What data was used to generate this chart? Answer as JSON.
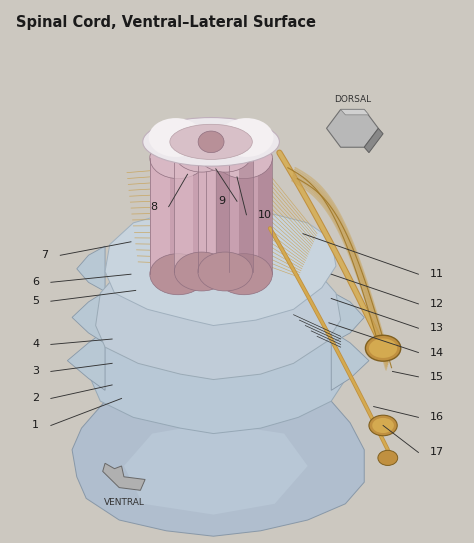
{
  "title": "Spinal Cord, Ventral–Lateral Surface",
  "bg_color": "#ccc8c0",
  "title_color": "#1a1a1a",
  "title_fontsize": 10.5,
  "label_fontsize": 8,
  "line_color": "#333333",
  "vertebra_light": "#b8c4d0",
  "vertebra_mid": "#a0b0c0",
  "vertebra_dark": "#8090a0",
  "cord_pink": "#c8a0a8",
  "cord_pink_light": "#ddbbc2",
  "cord_top_white": "#f0eaec",
  "cord_gray": "#d4c0c8",
  "nerve_gold": "#c8a050",
  "nerve_dark": "#a07828",
  "nerve_light": "#deb870",
  "ganglion_color": "#c09040",
  "arrow_fill": "#a0a0a0",
  "arrow_edge": "#606060",
  "label_data": {
    "1": [
      0.08,
      0.215,
      0.255,
      0.265
    ],
    "2": [
      0.08,
      0.265,
      0.235,
      0.29
    ],
    "3": [
      0.08,
      0.315,
      0.235,
      0.33
    ],
    "4": [
      0.08,
      0.365,
      0.235,
      0.375
    ],
    "5": [
      0.08,
      0.445,
      0.285,
      0.465
    ],
    "6": [
      0.08,
      0.48,
      0.275,
      0.495
    ],
    "7": [
      0.1,
      0.53,
      0.275,
      0.555
    ],
    "8": [
      0.33,
      0.62,
      0.395,
      0.68
    ],
    "9": [
      0.475,
      0.63,
      0.455,
      0.69
    ],
    "10": [
      0.545,
      0.605,
      0.5,
      0.675
    ],
    "11": [
      0.91,
      0.495,
      0.64,
      0.57
    ],
    "12": [
      0.91,
      0.44,
      0.7,
      0.495
    ],
    "13": [
      0.91,
      0.395,
      0.7,
      0.45
    ],
    "14": [
      0.91,
      0.35,
      0.695,
      0.405
    ],
    "15": [
      0.91,
      0.305,
      0.83,
      0.315
    ],
    "16": [
      0.91,
      0.23,
      0.79,
      0.25
    ],
    "17": [
      0.91,
      0.165,
      0.81,
      0.215
    ]
  }
}
